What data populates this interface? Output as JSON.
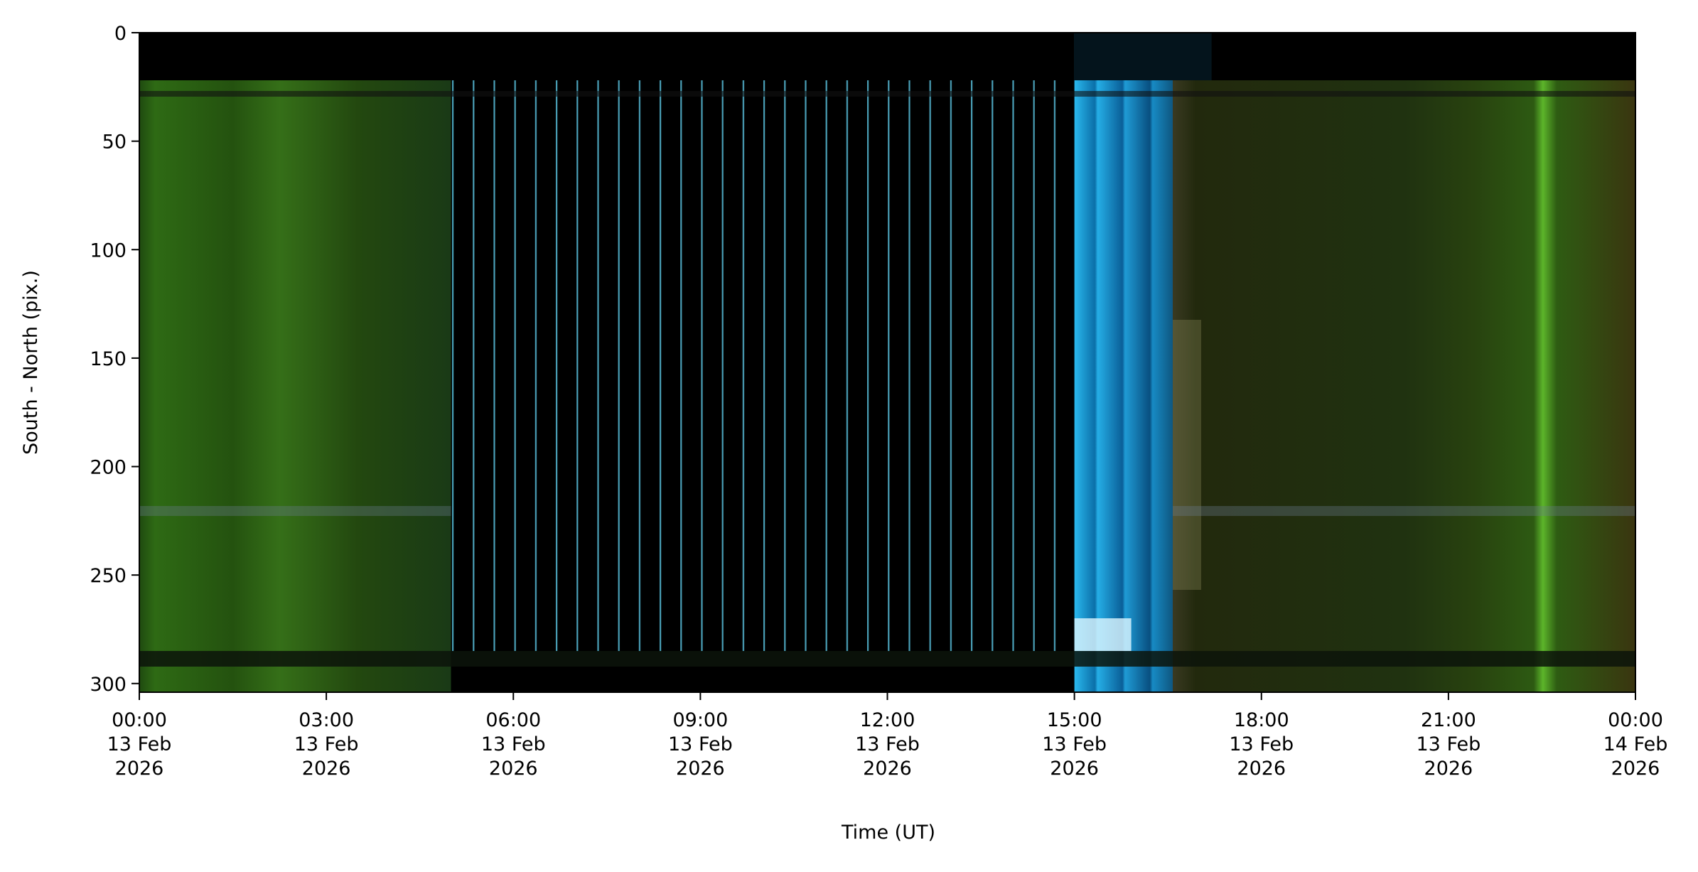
{
  "chart_data": {
    "type": "keogram",
    "xlabel": "Time (UT)",
    "ylabel": "South - North (pix.)",
    "xlim": [
      0,
      24
    ],
    "ylim": [
      304,
      0
    ],
    "xticks": [
      {
        "value": 0,
        "label": "00:00\n13 Feb\n2026"
      },
      {
        "value": 3,
        "label": "03:00\n13 Feb\n2026"
      },
      {
        "value": 6,
        "label": "06:00\n13 Feb\n2026"
      },
      {
        "value": 9,
        "label": "09:00\n13 Feb\n2026"
      },
      {
        "value": 12,
        "label": "12:00\n13 Feb\n2026"
      },
      {
        "value": 15,
        "label": "15:00\n13 Feb\n2026"
      },
      {
        "value": 18,
        "label": "18:00\n13 Feb\n2026"
      },
      {
        "value": 21,
        "label": "21:00\n13 Feb\n2026"
      },
      {
        "value": 24,
        "label": "00:00\n14 Feb\n2026"
      }
    ],
    "yticks": [
      0,
      50,
      100,
      150,
      200,
      250,
      300
    ]
  }
}
